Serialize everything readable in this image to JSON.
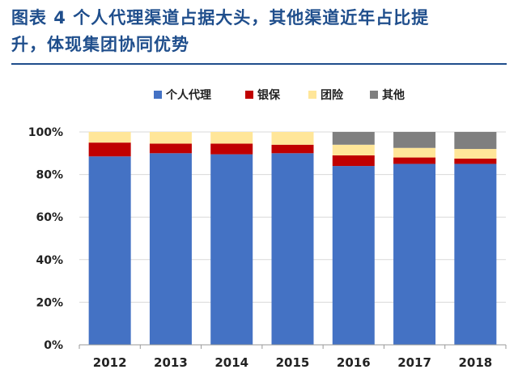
{
  "heading": {
    "line1": "图表 4 个人代理渠道占据大头，其他渠道近年占比提",
    "line2": "升，体现集团协同优势"
  },
  "chart_data": {
    "type": "bar",
    "stacked": true,
    "categories": [
      "2012",
      "2013",
      "2014",
      "2015",
      "2016",
      "2017",
      "2018"
    ],
    "series": [
      {
        "name": "个人代理",
        "color": "#4472c4",
        "values": [
          88.5,
          90,
          89.5,
          90,
          84,
          85,
          85
        ]
      },
      {
        "name": "银保",
        "color": "#c00000",
        "values": [
          6.5,
          4.5,
          5,
          4,
          5,
          3,
          2.5
        ]
      },
      {
        "name": "团险",
        "color": "#ffe699",
        "values": [
          5,
          5.5,
          5.5,
          6,
          5,
          4.5,
          4.5
        ]
      },
      {
        "name": "其他",
        "color": "#7f7f7f",
        "values": [
          0,
          0,
          0,
          0,
          6,
          7.5,
          8
        ]
      }
    ],
    "yticks": [
      "0%",
      "20%",
      "40%",
      "60%",
      "80%",
      "100%"
    ],
    "ylim": [
      0,
      100
    ],
    "legend_position": "top",
    "grid": true
  }
}
